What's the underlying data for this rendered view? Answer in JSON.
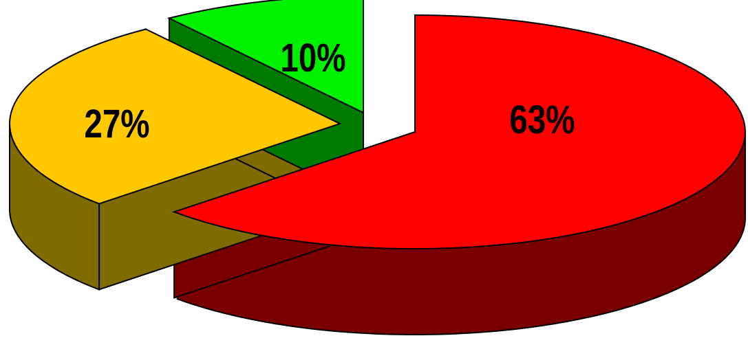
{
  "chart_data": {
    "type": "pie",
    "style": "3d-exploded",
    "title": "",
    "legend": "none",
    "slices": [
      {
        "label": "63%",
        "value": 63,
        "top_color": "#ff0000",
        "side_color": "#7a0000"
      },
      {
        "label": "27%",
        "value": 27,
        "top_color": "#ffc800",
        "side_color": "#7f6b00"
      },
      {
        "label": "10%",
        "value": 10,
        "top_color": "#00f000",
        "side_color": "#007a00"
      }
    ]
  }
}
